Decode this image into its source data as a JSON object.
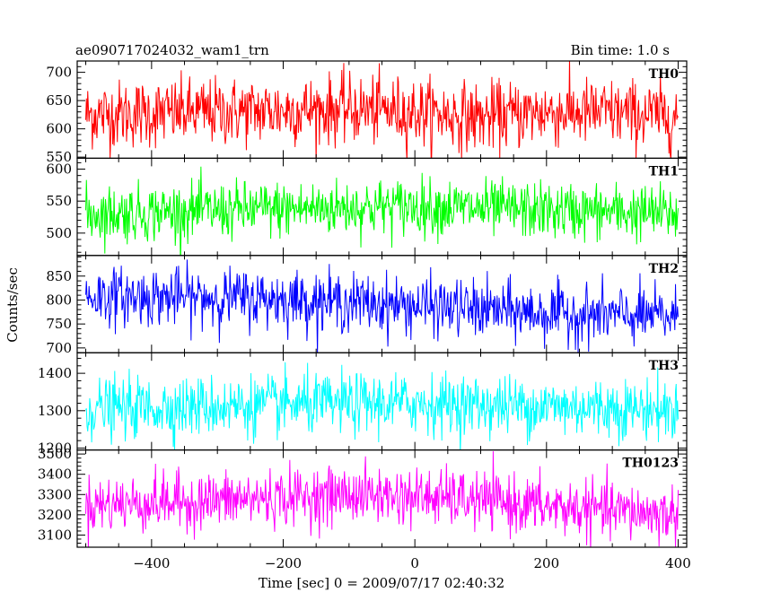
{
  "header": {
    "left_title": "ae090717024032_wam1_trn",
    "right_title": "Bin time: 1.0 s"
  },
  "chart_data": {
    "type": "line",
    "title": "ae090717024032_wam1_trn",
    "subtitle": "Bin time: 1.0 s",
    "xlabel": "Time [sec] 0 = 2009/07/17 02:40:32",
    "ylabel": "Counts/sec",
    "xlim": [
      -513,
      413
    ],
    "x_range": [
      -500,
      400
    ],
    "x_ticks": [
      -400,
      -200,
      0,
      200,
      400
    ],
    "x_tick_labels": [
      "−400",
      "−200",
      "0",
      "200",
      "400"
    ],
    "bin_time_s": 1.0,
    "grid": false,
    "legend": "none",
    "series": [
      {
        "name": "TH0",
        "color": "#ff0000",
        "ylim": [
          548,
          720
        ],
        "y_ticks": [
          550,
          600,
          650,
          700
        ],
        "trend": [
          [
            -500,
            625
          ],
          [
            -300,
            630
          ],
          [
            -100,
            635
          ],
          [
            0,
            630
          ],
          [
            100,
            620
          ],
          [
            200,
            630
          ],
          [
            300,
            628
          ],
          [
            400,
            622
          ]
        ],
        "noise_sd": 30
      },
      {
        "name": "TH1",
        "color": "#00ff00",
        "ylim": [
          465,
          617
        ],
        "y_ticks": [
          500,
          550,
          600
        ],
        "trend": [
          [
            -500,
            530
          ],
          [
            -300,
            535
          ],
          [
            -100,
            540
          ],
          [
            0,
            542
          ],
          [
            100,
            538
          ],
          [
            200,
            535
          ],
          [
            300,
            533
          ],
          [
            400,
            530
          ]
        ],
        "noise_sd": 22
      },
      {
        "name": "TH2",
        "color": "#0000ff",
        "ylim": [
          690,
          893
        ],
        "y_ticks": [
          700,
          750,
          800,
          850
        ],
        "trend": [
          [
            -500,
            808
          ],
          [
            -300,
            805
          ],
          [
            -200,
            802
          ],
          [
            -100,
            795
          ],
          [
            0,
            788
          ],
          [
            100,
            780
          ],
          [
            200,
            772
          ],
          [
            300,
            768
          ],
          [
            400,
            765
          ]
        ],
        "noise_sd": 30
      },
      {
        "name": "TH3",
        "color": "#00ffff",
        "ylim": [
          1195,
          1455
        ],
        "y_ticks": [
          1200,
          1300,
          1400
        ],
        "trend": [
          [
            -500,
            1305
          ],
          [
            -300,
            1312
          ],
          [
            -100,
            1318
          ],
          [
            0,
            1320
          ],
          [
            100,
            1315
          ],
          [
            200,
            1312
          ],
          [
            300,
            1308
          ],
          [
            400,
            1300
          ]
        ],
        "noise_sd": 40
      },
      {
        "name": "TH0123",
        "color": "#ff00ff",
        "ylim": [
          3040,
          3520
        ],
        "y_ticks": [
          3100,
          3200,
          3300,
          3400,
          3500
        ],
        "trend": [
          [
            -500,
            3250
          ],
          [
            -300,
            3270
          ],
          [
            -100,
            3300
          ],
          [
            0,
            3290
          ],
          [
            100,
            3270
          ],
          [
            200,
            3240
          ],
          [
            300,
            3220
          ],
          [
            400,
            3200
          ]
        ],
        "noise_sd": 70
      }
    ]
  }
}
